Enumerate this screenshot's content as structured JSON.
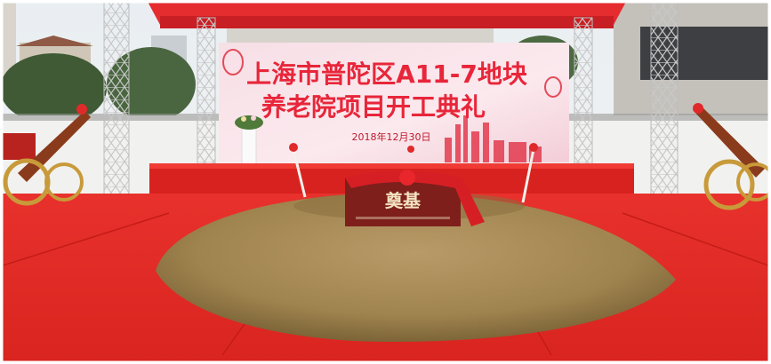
{
  "banner": {
    "title_line1": "上海市普陀区A11-7地块",
    "title_line2": "养老院项目开工典礼",
    "date": "2018年12月30日"
  },
  "stone": {
    "label": "奠基"
  }
}
